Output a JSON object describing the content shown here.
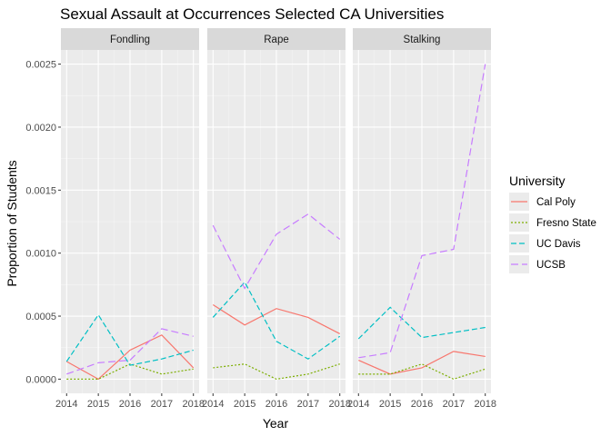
{
  "chart_data": {
    "type": "line",
    "title": "Sexual Assault at Occurrences Selected CA Universities",
    "xlabel": "Year",
    "ylabel": "Proportion of Students",
    "x": [
      2014,
      2015,
      2016,
      2017,
      2018
    ],
    "xlim": [
      2014,
      2018
    ],
    "ylim": [
      0,
      0.0025
    ],
    "y_ticks": [
      "0.0000",
      "0.0005",
      "0.0010",
      "0.0015",
      "0.0020",
      "0.0025"
    ],
    "y_tick_values": [
      0,
      0.0005,
      0.001,
      0.0015,
      0.002,
      0.0025
    ],
    "x_ticks": [
      "2014",
      "2015",
      "2016",
      "2017",
      "2018"
    ],
    "grid": true,
    "legend": {
      "title": "University",
      "position": "right",
      "items": [
        {
          "name": "Cal Poly",
          "color": "#F8766D",
          "dash": "solid"
        },
        {
          "name": "Fresno State",
          "color": "#7CAE00",
          "dash": "dotted"
        },
        {
          "name": "UC Davis",
          "color": "#00BFC4",
          "dash": "dashed"
        },
        {
          "name": "UCSB",
          "color": "#C77CFF",
          "dash": "longdash"
        }
      ]
    },
    "panels": [
      {
        "name": "Fondling",
        "series": [
          {
            "name": "Cal Poly",
            "values": [
              0.00014,
              0.0,
              0.00023,
              0.00035,
              9e-05
            ]
          },
          {
            "name": "Fresno State",
            "values": [
              0.0,
              0.0,
              0.00012,
              4e-05,
              8e-05
            ]
          },
          {
            "name": "UC Davis",
            "values": [
              0.00014,
              0.00051,
              0.00011,
              0.00016,
              0.00023
            ]
          },
          {
            "name": "UCSB",
            "values": [
              4e-05,
              0.00013,
              0.00015,
              0.0004,
              0.00034
            ]
          }
        ]
      },
      {
        "name": "Rape",
        "series": [
          {
            "name": "Cal Poly",
            "values": [
              0.00059,
              0.00043,
              0.00056,
              0.00049,
              0.00036
            ]
          },
          {
            "name": "Fresno State",
            "values": [
              9e-05,
              0.00012,
              0.0,
              4e-05,
              0.00012
            ]
          },
          {
            "name": "UC Davis",
            "values": [
              0.00049,
              0.00077,
              0.0003,
              0.00016,
              0.00034
            ]
          },
          {
            "name": "UCSB",
            "values": [
              0.00122,
              0.00072,
              0.00115,
              0.00131,
              0.00111
            ]
          }
        ]
      },
      {
        "name": "Stalking",
        "series": [
          {
            "name": "Cal Poly",
            "values": [
              0.00015,
              4e-05,
              9e-05,
              0.00022,
              0.00018
            ]
          },
          {
            "name": "Fresno State",
            "values": [
              4e-05,
              4e-05,
              0.00012,
              0.0,
              8e-05
            ]
          },
          {
            "name": "UC Davis",
            "values": [
              0.00032,
              0.00057,
              0.00033,
              0.00037,
              0.00041
            ]
          },
          {
            "name": "UCSB",
            "values": [
              0.00017,
              0.00021,
              0.00098,
              0.00103,
              0.0025
            ]
          }
        ]
      }
    ]
  }
}
